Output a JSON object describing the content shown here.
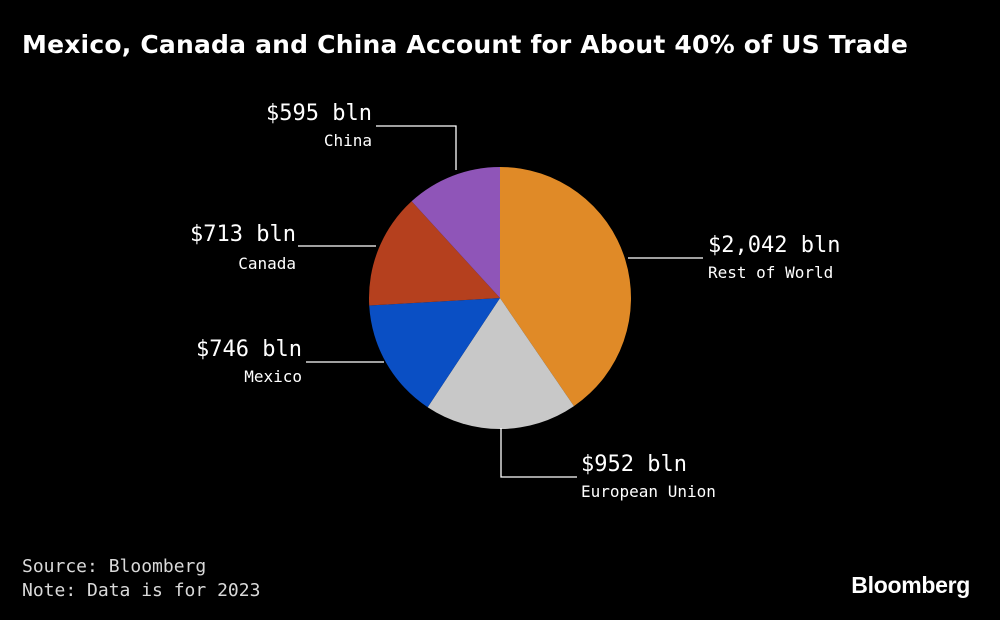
{
  "chart_data": {
    "type": "pie",
    "title": "Mexico, Canada and China Account for About 40% of US Trade",
    "unit_prefix": "$",
    "unit_suffix": " bln",
    "slices": [
      {
        "label": "Rest of World",
        "value": 2042,
        "value_label": "$2,042 bln",
        "color": "#e08a27"
      },
      {
        "label": "European Union",
        "value": 952,
        "value_label": "$952 bln",
        "color": "#c8c8c8"
      },
      {
        "label": "Mexico",
        "value": 746,
        "value_label": "$746 bln",
        "color": "#0a4fc4"
      },
      {
        "label": "Canada",
        "value": 713,
        "value_label": "$713 bln",
        "color": "#b5401e"
      },
      {
        "label": "China",
        "value": 595,
        "value_label": "$595 bln",
        "color": "#8f55b8"
      }
    ]
  },
  "footer": {
    "source": "Source: Bloomberg",
    "note": "Note: Data is for 2023"
  },
  "brand": {
    "logo_text": "Bloomberg"
  }
}
